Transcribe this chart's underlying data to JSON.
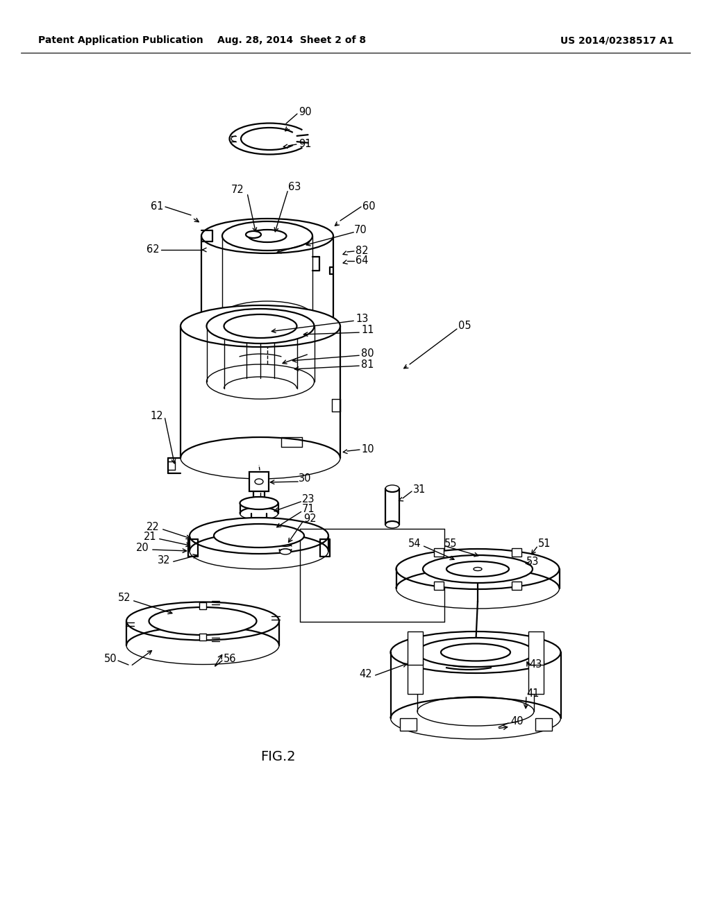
{
  "background_color": "#ffffff",
  "header_left": "Patent Application Publication",
  "header_center": "Aug. 28, 2014  Sheet 2 of 8",
  "header_right": "US 2014/0238517 A1",
  "figure_label": "FIG.2",
  "text_color": "#000000",
  "line_color": "#000000",
  "header_font_size": 10,
  "label_font_size": 10.5,
  "fig_label_font_size": 14
}
